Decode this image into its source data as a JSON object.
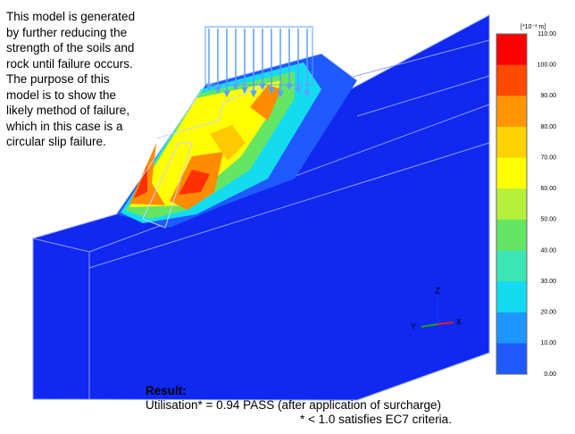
{
  "description": [
    "This model is generated",
    "by further reducing the",
    "strength of the soils and",
    "rock until failure occurs.",
    "The purpose of this",
    "model is to show the",
    "likely method of failure,",
    "which in this case is a",
    "circular slip failure."
  ],
  "legend": {
    "unit": "[*10⁻³ m]",
    "ticks": [
      "110.00",
      "100.00",
      "90.00",
      "80.00",
      "70.00",
      "60.00",
      "50.00",
      "40.00",
      "30.00",
      "20.00",
      "10.00",
      "0.00"
    ]
  },
  "axes": {
    "z": "Z",
    "y": "Y",
    "x": "X"
  },
  "result": {
    "title": "Result:",
    "line": "Utilisation* = 0.94 PASS (after application of surcharge)",
    "note": "* < 1.0 satisfies EC7 criteria."
  }
}
